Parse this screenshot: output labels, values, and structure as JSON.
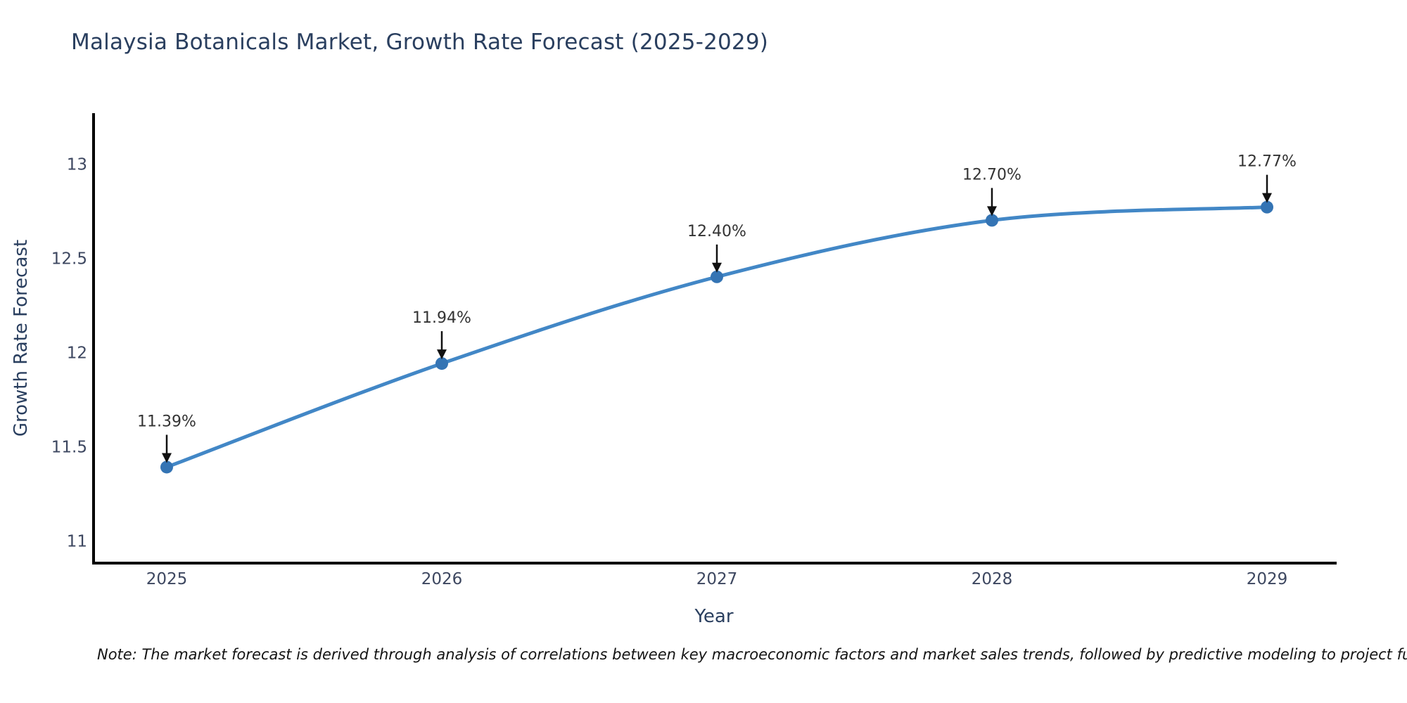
{
  "title": "Malaysia Botanicals Market, Growth Rate Forecast (2025-2029)",
  "note": "Note: The market forecast is derived through analysis of correlations between key macroeconomic factors and market sales trends, followed by predictive modeling to project future sal",
  "chart_data": {
    "type": "line",
    "title": "Malaysia Botanicals Market, Growth Rate Forecast (2025-2029)",
    "xlabel": "Year",
    "ylabel": "Growth Rate Forecast",
    "x": [
      "2025",
      "2026",
      "2027",
      "2028",
      "2029"
    ],
    "series": [
      {
        "name": "Growth Rate Forecast",
        "values": [
          11.39,
          11.94,
          12.4,
          12.7,
          12.77
        ]
      }
    ],
    "point_labels": [
      "11.39%",
      "11.94%",
      "12.40%",
      "12.70%",
      "12.77%"
    ],
    "yticks": [
      11,
      11.5,
      12,
      12.5,
      13
    ],
    "ylim": [
      10.88,
      13.27
    ],
    "line_shape": "spline",
    "grid": false,
    "legend": "none",
    "colors": {
      "line": "#4287c6",
      "marker": "#3474b4",
      "axis": "#000000",
      "annotation_arrow": "#111111",
      "annotation_text": "#333333",
      "title_text": "#2a3f5f",
      "tick_text": "#3d4760",
      "background": "#ffffff"
    }
  }
}
